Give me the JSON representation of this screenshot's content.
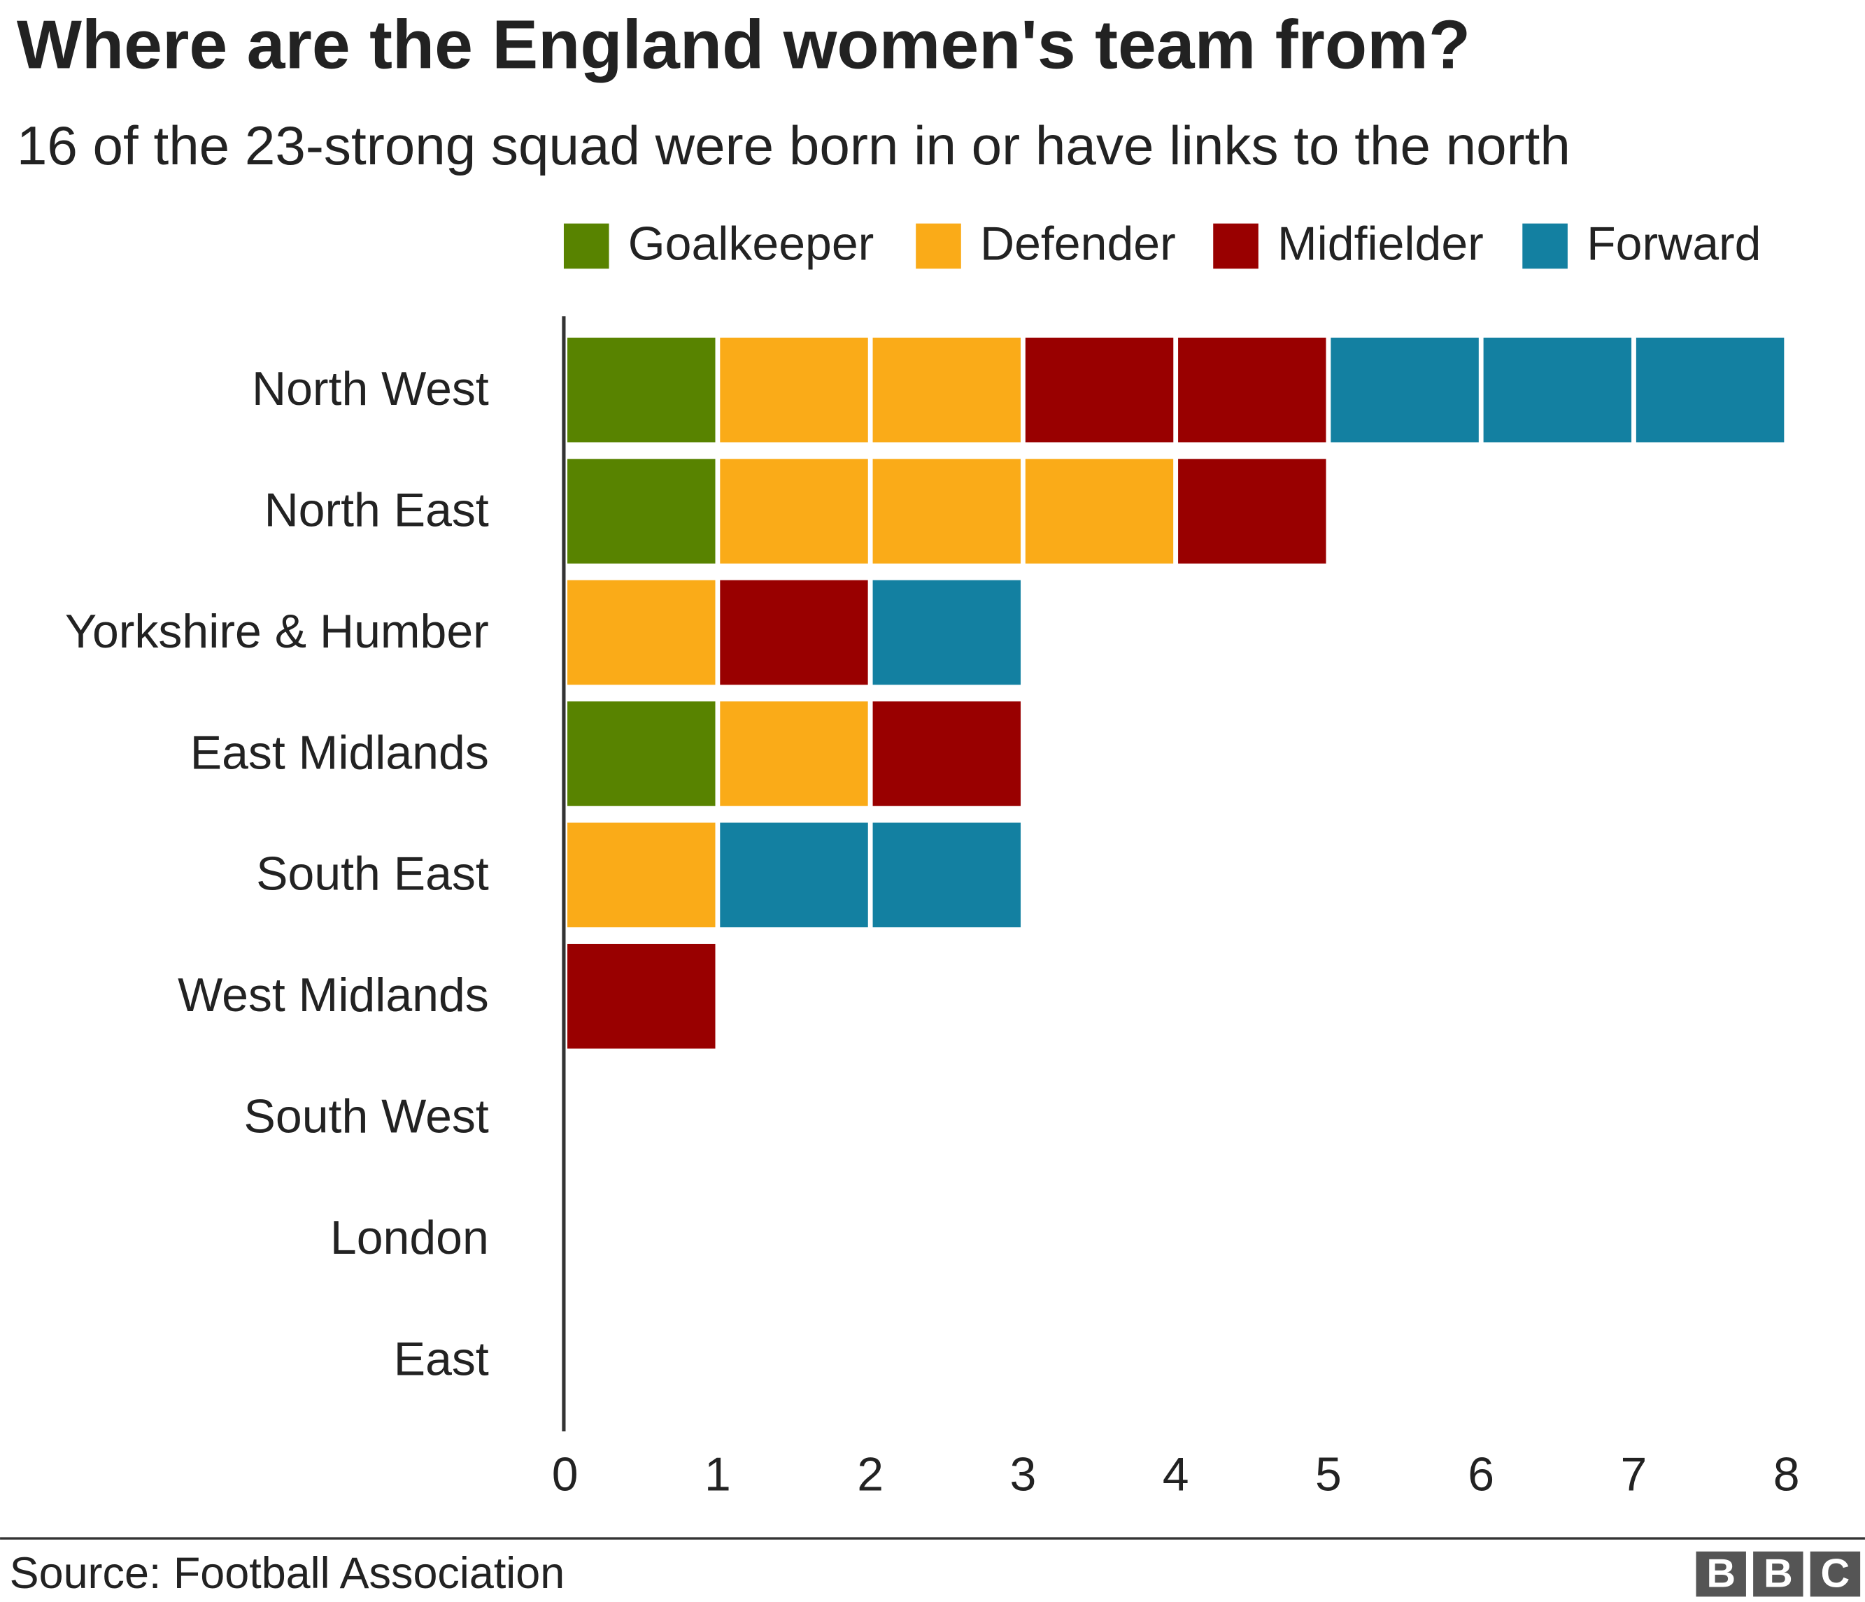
{
  "chart_data": {
    "type": "stacked-bar-horizontal",
    "title": "Where are the England women's team from?",
    "subtitle": "16 of the 23-strong squad were born in or have links to the north",
    "categories": [
      "North West",
      "North East",
      "Yorkshire & Humber",
      "East Midlands",
      "South East",
      "West Midlands",
      "South West",
      "London",
      "East"
    ],
    "series": [
      {
        "name": "Goalkeeper",
        "color": "#588300",
        "values": [
          1,
          1,
          0,
          1,
          0,
          0,
          0,
          0,
          0
        ]
      },
      {
        "name": "Defender",
        "color": "#FAAB18",
        "values": [
          2,
          3,
          1,
          1,
          1,
          0,
          0,
          0,
          0
        ]
      },
      {
        "name": "Midfielder",
        "color": "#990000",
        "values": [
          2,
          1,
          1,
          1,
          0,
          1,
          0,
          0,
          0
        ]
      },
      {
        "name": "Forward",
        "color": "#1380A1",
        "values": [
          3,
          0,
          1,
          0,
          2,
          0,
          0,
          0,
          0
        ]
      }
    ],
    "xlim": [
      0,
      8
    ],
    "xticks": [
      0,
      1,
      2,
      3,
      4,
      5,
      6,
      7,
      8
    ],
    "legend": "top",
    "source": "Source: Football Association",
    "logo": [
      "B",
      "B",
      "C"
    ]
  }
}
